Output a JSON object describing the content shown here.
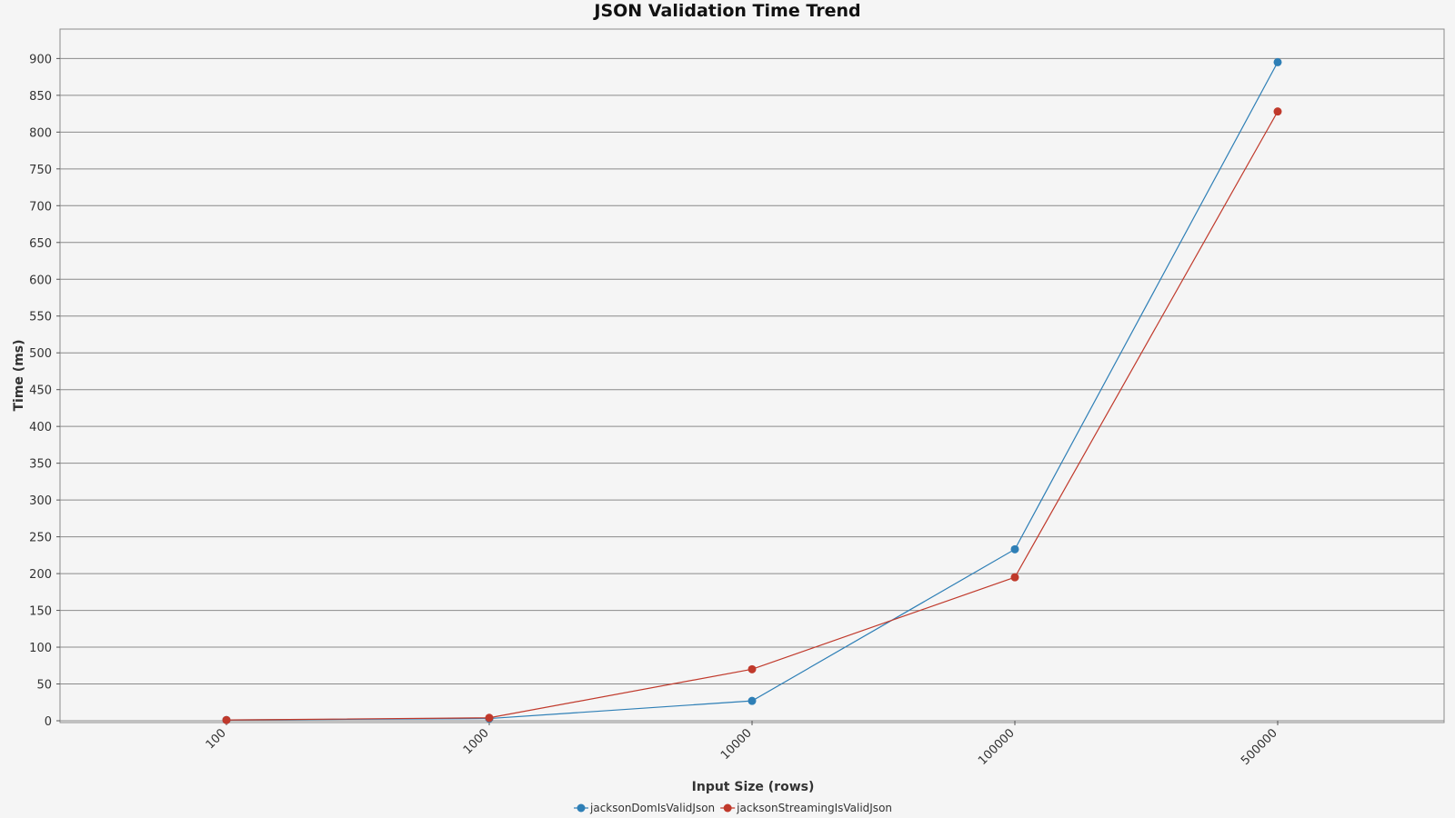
{
  "chart_data": {
    "type": "line",
    "title": "JSON Validation Time Trend",
    "xlabel": "Input Size (rows)",
    "ylabel": "Time (ms)",
    "categories": [
      "100",
      "1000",
      "10000",
      "100000",
      "500000"
    ],
    "ylim": [
      0,
      940
    ],
    "yticks": [
      0,
      50,
      100,
      150,
      200,
      250,
      300,
      350,
      400,
      450,
      500,
      550,
      600,
      650,
      700,
      750,
      800,
      850,
      900
    ],
    "grid": true,
    "legend_position": "bottom",
    "series": [
      {
        "name": "jacksonDomIsValidJson",
        "color": "#2e7fb6",
        "values": [
          1,
          3,
          27,
          233,
          895
        ]
      },
      {
        "name": "jacksonStreamingIsValidJson",
        "color": "#c0392b",
        "values": [
          1,
          4,
          70,
          195,
          828
        ]
      }
    ]
  }
}
